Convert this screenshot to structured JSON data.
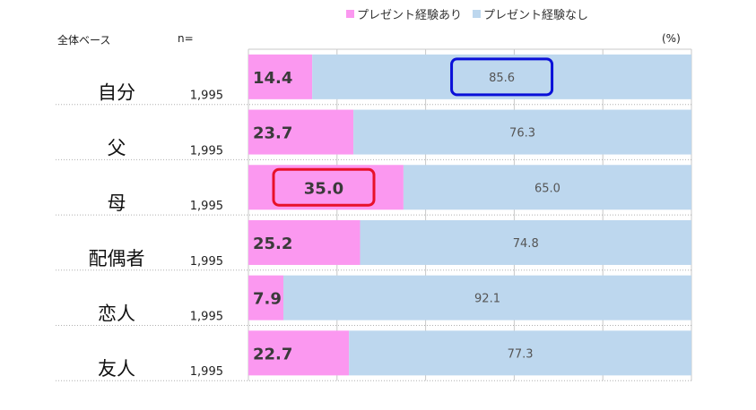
{
  "legend": {
    "with_label": "プレゼント経験あり",
    "without_label": "プレゼント経験なし"
  },
  "header": {
    "base_label": "全体ベース",
    "n_label": "n=",
    "unit": "(%)"
  },
  "colors": {
    "with": "#fb98f0",
    "without": "#bdd7ee",
    "highlight_blue": "#0a10d8",
    "highlight_red": "#e8112a",
    "grid": "#c8c8c8"
  },
  "chart_data": {
    "type": "bar",
    "orientation": "horizontal",
    "stacked": true,
    "categories": [
      "自分",
      "父",
      "母",
      "配偶者",
      "恋人",
      "友人"
    ],
    "n": [
      "1,995",
      "1,995",
      "1,995",
      "1,995",
      "1,995",
      "1,995"
    ],
    "series": [
      {
        "name": "プレゼント経験あり",
        "values": [
          14.4,
          23.7,
          35.0,
          25.2,
          7.9,
          22.7
        ]
      },
      {
        "name": "プレゼント経験なし",
        "values": [
          85.6,
          76.3,
          65.0,
          74.8,
          92.1,
          77.3
        ]
      }
    ],
    "xlim": [
      0,
      100
    ],
    "grid": true,
    "legend_position": "top",
    "highlights": [
      {
        "category": "自分",
        "series": "プレゼント経験なし",
        "color": "blue"
      },
      {
        "category": "母",
        "series": "プレゼント経験あり",
        "color": "red"
      }
    ]
  }
}
